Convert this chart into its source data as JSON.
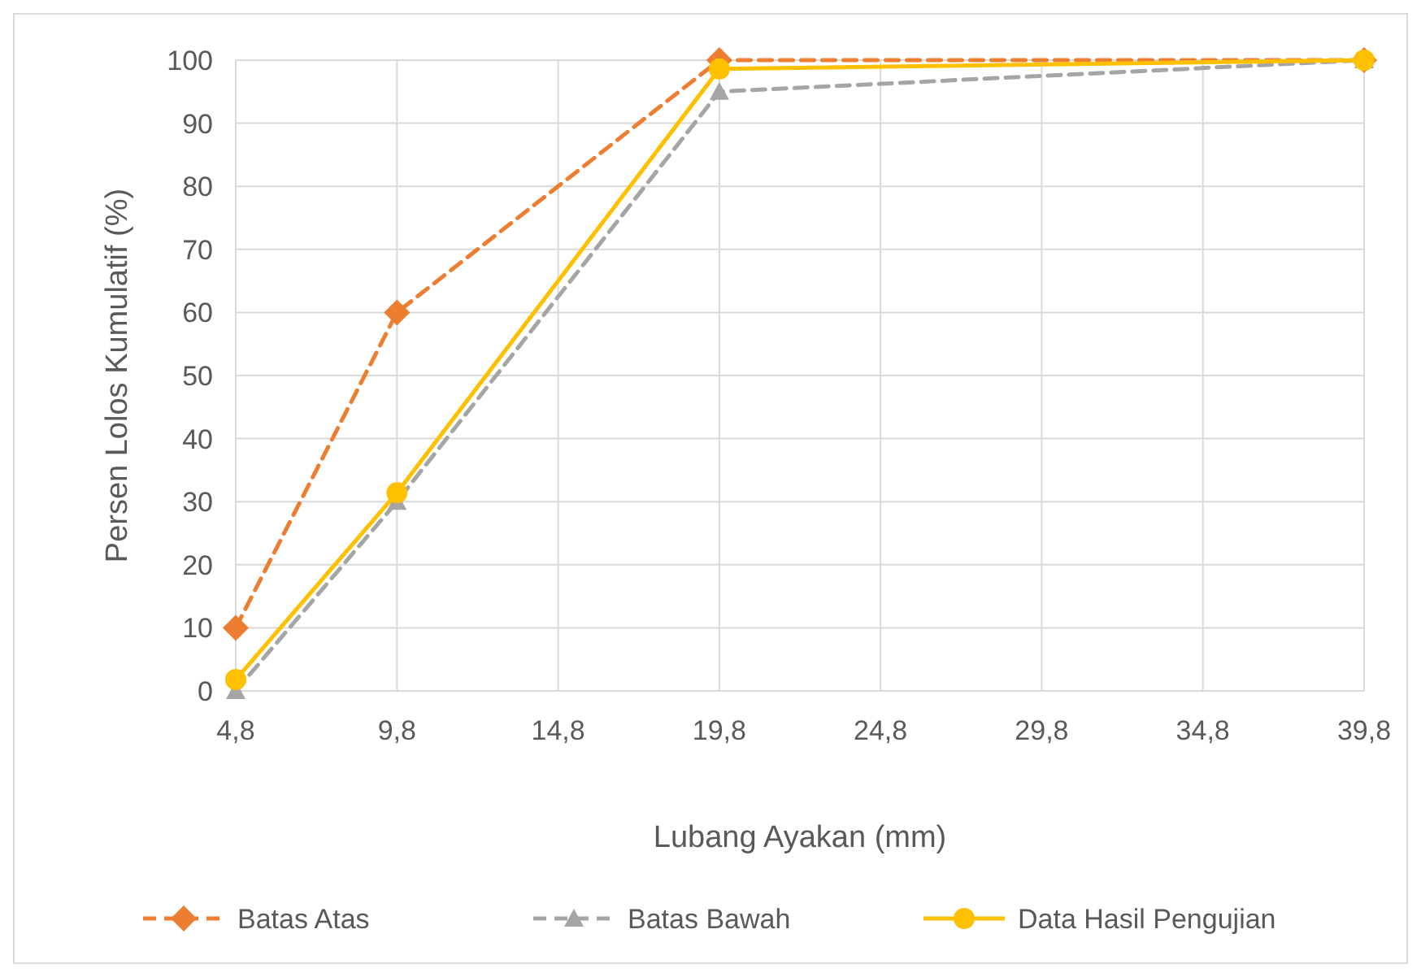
{
  "chart_data": {
    "type": "line",
    "xlabel": "Lubang Ayakan (mm)",
    "ylabel": "Persen Lolos Kumulatif (%)",
    "x": [
      4.8,
      9.8,
      19.8,
      39.8
    ],
    "series": [
      {
        "name": "Batas Atas",
        "color": "#ed7d31",
        "values": [
          10,
          60,
          100,
          100
        ],
        "marker": "diamond",
        "line_style": "dashed"
      },
      {
        "name": "Batas Bawah",
        "color": "#a5a5a5",
        "values": [
          0,
          30,
          95,
          100
        ],
        "marker": "triangle",
        "line_style": "dashed"
      },
      {
        "name": "Data Hasil Pengujian",
        "color": "#ffc000",
        "values": [
          1.8,
          31.4,
          98.6,
          100
        ],
        "marker": "circle",
        "line_style": "solid"
      }
    ],
    "xlim": [
      4.8,
      39.8
    ],
    "xticks": [
      {
        "value": 4.8,
        "label": "4,8"
      },
      {
        "value": 9.8,
        "label": "9,8"
      },
      {
        "value": 14.8,
        "label": "14,8"
      },
      {
        "value": 19.8,
        "label": "19,8"
      },
      {
        "value": 24.8,
        "label": "24,8"
      },
      {
        "value": 29.8,
        "label": "29,8"
      },
      {
        "value": 34.8,
        "label": "34,8"
      },
      {
        "value": 39.8,
        "label": "39,8"
      }
    ],
    "ylim": [
      0,
      100
    ],
    "yticks": [
      0,
      10,
      20,
      30,
      40,
      50,
      60,
      70,
      80,
      90,
      100
    ],
    "grid": true,
    "legend": "bottom"
  }
}
